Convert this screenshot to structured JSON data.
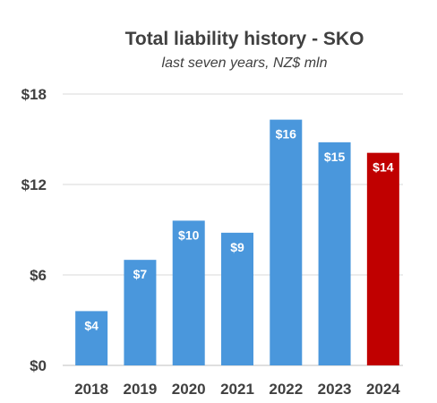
{
  "chart_data": {
    "type": "bar",
    "title": "Total liability history - SKO",
    "subtitle": "last seven years, NZ$ mln",
    "xlabel": "",
    "ylabel": "",
    "categories": [
      "2018",
      "2019",
      "2020",
      "2021",
      "2022",
      "2023",
      "2024"
    ],
    "values": [
      3.6,
      7.0,
      9.6,
      8.8,
      16.3,
      14.8,
      14.1
    ],
    "data_labels": [
      "$4",
      "$7",
      "$10",
      "$9",
      "$16",
      "$15",
      "$14"
    ],
    "ylim": [
      0,
      18
    ],
    "yticks": [
      0,
      6,
      12,
      18
    ],
    "ytick_labels": [
      "$0",
      "$6",
      "$12",
      "$18"
    ],
    "grid": true,
    "legend": "none",
    "colors": {
      "default": "#4a97dc",
      "highlight": "#c00000",
      "highlight_category": "2024"
    }
  }
}
